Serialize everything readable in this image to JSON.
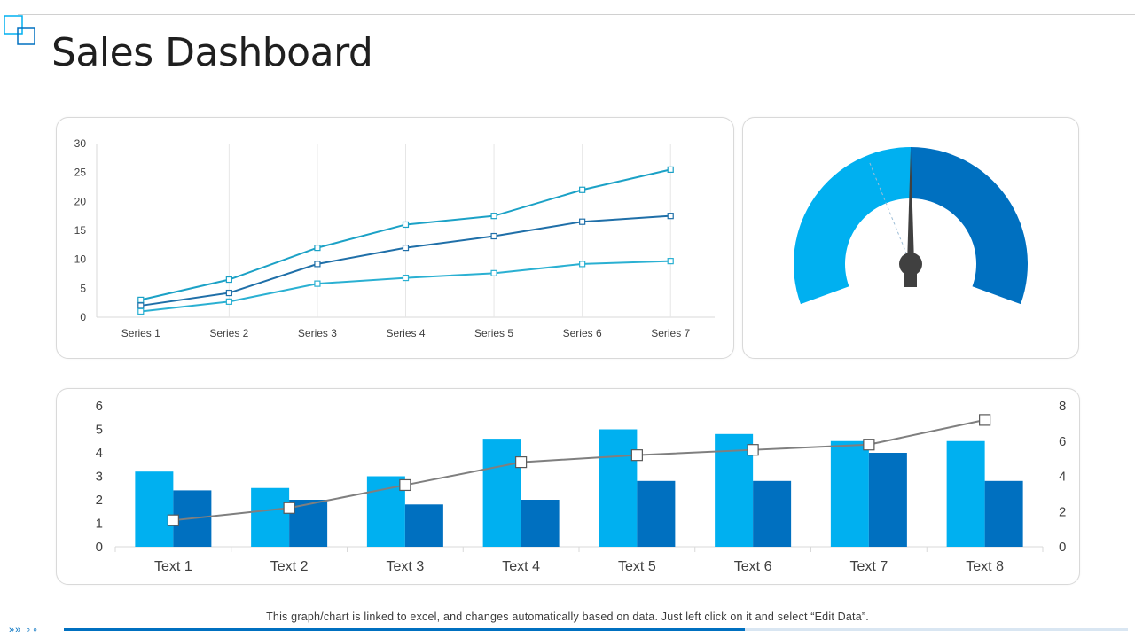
{
  "page": {
    "title": "Sales Dashboard",
    "footer_note": "This graph/chart is linked to excel, and changes automatically based on data. Just left click on it and select “Edit Data”.",
    "progress": 0.64,
    "nav_icons": "»» ∘∘",
    "colors": {
      "accent": "#0070c0",
      "light": "#00b0f0",
      "teal": "#1ba1c6",
      "gray_line": "#7f7f7f"
    }
  },
  "chart_data": [
    {
      "type": "line",
      "categories": [
        "Series 1",
        "Series 2",
        "Series 3",
        "Series 4",
        "Series 5",
        "Series 6",
        "Series 7"
      ],
      "ylim": [
        0,
        30
      ],
      "yticks": [
        0,
        5,
        10,
        15,
        20,
        25,
        30
      ],
      "grid": "vertical",
      "series": [
        {
          "values": [
            3,
            6.5,
            12,
            16,
            17.5,
            22,
            25.5
          ],
          "color": "#1ba1c6"
        },
        {
          "values": [
            2,
            4.2,
            9.2,
            12,
            14,
            16.5,
            17.5
          ],
          "color": "#1f6fa8"
        },
        {
          "values": [
            1,
            2.7,
            5.8,
            6.8,
            7.6,
            9.2,
            9.7
          ],
          "color": "#2ab0d2"
        }
      ]
    },
    {
      "type": "gauge",
      "value": 0.5,
      "segments": [
        {
          "from": 0,
          "to": 0.5,
          "color": "#00b0f0"
        },
        {
          "from": 0.5,
          "to": 1,
          "color": "#0070c0"
        }
      ],
      "needle_color": "#404040"
    },
    {
      "type": "bar",
      "categories": [
        "Text 1",
        "Text 2",
        "Text 3",
        "Text 4",
        "Text 5",
        "Text 6",
        "Text 7",
        "Text 8"
      ],
      "ylim": [
        0,
        6
      ],
      "yticks": [
        0,
        1,
        2,
        3,
        4,
        5,
        6
      ],
      "y2lim": [
        0,
        8
      ],
      "y2ticks": [
        0,
        2,
        4,
        6,
        8
      ],
      "series": [
        {
          "values": [
            3.2,
            2.5,
            3,
            4.6,
            5,
            4.8,
            4.5,
            4.5
          ],
          "color": "#00b0f0"
        },
        {
          "values": [
            2.4,
            2,
            1.8,
            2,
            2.8,
            2.8,
            4,
            2.8
          ],
          "color": "#0070c0"
        },
        {
          "values": [
            1.5,
            2.2,
            3.5,
            4.8,
            5.2,
            5.5,
            5.8,
            7.2
          ],
          "color": "#7f7f7f",
          "type": "line",
          "axis": "secondary"
        }
      ]
    }
  ]
}
